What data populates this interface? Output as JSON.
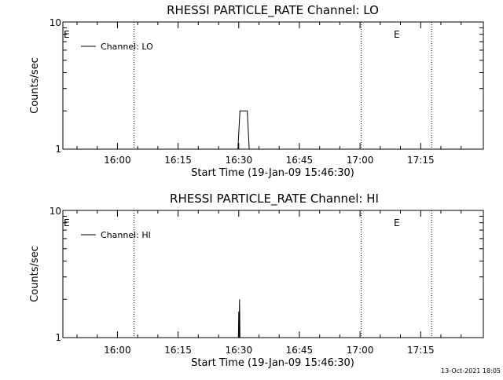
{
  "footer": {
    "timestamp": "13-Oct-2021 18:05"
  },
  "chart_data": [
    {
      "type": "line",
      "title": "RHESSI PARTICLE_RATE Channel: LO",
      "xlabel": "Start Time (19-Jan-09 15:46:30)",
      "ylabel": "Counts/sec",
      "y_scale": "log",
      "ylim": [
        1,
        10
      ],
      "y_ticks": [
        "1",
        "10"
      ],
      "x_ticks": [
        "16:00",
        "16:15",
        "16:30",
        "16:45",
        "17:00",
        "17:15"
      ],
      "x_tick_minutes": [
        960,
        975,
        990,
        1005,
        1020,
        1035
      ],
      "xlim_minutes": [
        946.5,
        1050.5
      ],
      "grid": false,
      "legend_placement": "top-left",
      "series": [
        {
          "name": "Channel: LO",
          "x_minutes": [
            946.5,
            989.8,
            990.3,
            992.1,
            992.6,
            1050.5
          ],
          "values": [
            1,
            1,
            2,
            2,
            1,
            1
          ]
        }
      ],
      "markers": [
        {
          "label": "E",
          "x_minutes": 946.5,
          "dotted": false
        },
        {
          "label": "",
          "x_minutes": 964.1,
          "dotted": true
        },
        {
          "label": "E",
          "x_minutes": 1020.3,
          "dotted": true
        },
        {
          "label": "",
          "x_minutes": 1037.7,
          "dotted": true
        }
      ]
    },
    {
      "type": "line",
      "title": "RHESSI PARTICLE_RATE Channel: HI",
      "xlabel": "Start Time (19-Jan-09 15:46:30)",
      "ylabel": "Counts/sec",
      "y_scale": "log",
      "ylim": [
        1,
        10
      ],
      "y_ticks": [
        "1",
        "10"
      ],
      "x_ticks": [
        "16:00",
        "16:15",
        "16:30",
        "16:45",
        "17:00",
        "17:15"
      ],
      "x_tick_minutes": [
        960,
        975,
        990,
        1005,
        1020,
        1035
      ],
      "xlim_minutes": [
        946.5,
        1050.5
      ],
      "grid": false,
      "legend_placement": "top-left",
      "series": [
        {
          "name": "Channel: HI",
          "x_minutes": [
            946.5,
            989.9,
            990.0,
            990.1,
            990.2,
            990.3,
            1050.5
          ],
          "values": [
            1,
            1,
            1.6,
            1,
            2,
            1,
            1
          ]
        }
      ],
      "markers": [
        {
          "label": "E",
          "x_minutes": 946.5,
          "dotted": false
        },
        {
          "label": "",
          "x_minutes": 964.1,
          "dotted": true
        },
        {
          "label": "E",
          "x_minutes": 1020.3,
          "dotted": true
        },
        {
          "label": "",
          "x_minutes": 1037.7,
          "dotted": true
        }
      ]
    }
  ]
}
